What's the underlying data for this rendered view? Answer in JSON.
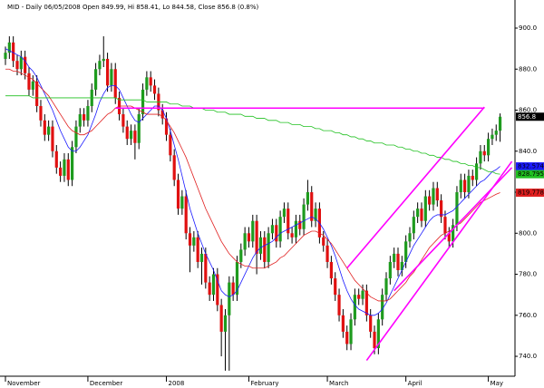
{
  "chart_data": {
    "type": "candlestick",
    "title": "MID - Daily 06/05/2008 Open 849.99, Hi 858.41, Lo 844.58, Close 856.8 (0.8%)",
    "open": [
      885,
      888,
      893,
      884,
      880,
      886,
      878,
      870,
      874,
      862,
      855,
      848,
      852,
      840,
      832,
      828,
      836,
      826,
      842,
      852,
      858,
      855,
      862,
      870,
      880,
      884,
      885,
      872,
      880,
      866,
      858,
      852,
      846,
      850,
      844,
      858,
      870,
      876,
      872,
      868,
      860,
      856,
      848,
      838,
      826,
      812,
      818,
      800,
      794,
      798,
      786,
      790,
      776,
      770,
      780,
      765,
      752,
      760,
      776,
      770,
      786,
      792,
      800,
      796,
      806,
      790,
      798,
      786,
      800,
      804,
      796,
      808,
      812,
      800,
      798,
      806,
      802,
      814,
      820,
      806,
      812,
      798,
      794,
      786,
      778,
      770,
      760,
      752,
      746,
      758,
      770,
      768,
      772,
      760,
      752,
      744,
      758,
      770,
      778,
      786,
      790,
      782,
      786,
      796,
      800,
      808,
      812,
      806,
      818,
      814,
      822,
      816,
      808,
      800,
      796,
      804,
      820,
      826,
      820,
      828,
      826,
      834,
      840,
      838,
      846,
      848,
      849.99
    ],
    "high": [
      891,
      896,
      896,
      887,
      889,
      889,
      881,
      877,
      877,
      865,
      858,
      855,
      855,
      843,
      835,
      839,
      839,
      845,
      855,
      861,
      861,
      865,
      873,
      883,
      887,
      896,
      888,
      883,
      883,
      869,
      861,
      855,
      853,
      853,
      861,
      873,
      879,
      879,
      875,
      871,
      863,
      859,
      851,
      841,
      829,
      821,
      821,
      803,
      801,
      801,
      793,
      793,
      779,
      783,
      783,
      768,
      763,
      779,
      779,
      789,
      795,
      803,
      803,
      809,
      809,
      801,
      801,
      803,
      807,
      807,
      811,
      815,
      815,
      803,
      809,
      809,
      817,
      826,
      823,
      815,
      815,
      801,
      797,
      789,
      781,
      773,
      763,
      755,
      761,
      773,
      773,
      775,
      775,
      763,
      755,
      761,
      773,
      781,
      789,
      793,
      793,
      789,
      799,
      803,
      811,
      815,
      815,
      821,
      821,
      825,
      825,
      819,
      811,
      803,
      807,
      823,
      829,
      829,
      831,
      831,
      837,
      843,
      843,
      849,
      851,
      853,
      858.41
    ],
    "low": [
      882,
      885,
      881,
      877,
      877,
      875,
      867,
      867,
      859,
      852,
      845,
      845,
      837,
      829,
      825,
      825,
      823,
      823,
      839,
      849,
      852,
      852,
      859,
      867,
      877,
      881,
      869,
      869,
      863,
      855,
      849,
      843,
      843,
      836,
      841,
      855,
      867,
      869,
      865,
      857,
      853,
      845,
      835,
      823,
      809,
      809,
      797,
      781,
      791,
      783,
      775,
      773,
      767,
      767,
      762,
      740,
      733,
      733,
      767,
      767,
      783,
      789,
      793,
      793,
      780,
      787,
      783,
      783,
      797,
      793,
      793,
      805,
      797,
      795,
      795,
      799,
      799,
      811,
      803,
      803,
      795,
      791,
      783,
      775,
      767,
      757,
      749,
      743,
      743,
      755,
      765,
      765,
      757,
      749,
      741,
      741,
      755,
      767,
      775,
      783,
      779,
      779,
      783,
      793,
      797,
      805,
      803,
      803,
      811,
      811,
      813,
      805,
      797,
      793,
      793,
      801,
      817,
      817,
      817,
      823,
      823,
      831,
      835,
      835,
      843,
      845,
      844.58
    ],
    "close": [
      888,
      893,
      884,
      880,
      886,
      878,
      870,
      874,
      862,
      855,
      848,
      852,
      840,
      832,
      828,
      836,
      826,
      842,
      852,
      858,
      855,
      862,
      870,
      880,
      884,
      885,
      872,
      880,
      866,
      858,
      852,
      846,
      850,
      844,
      858,
      870,
      876,
      872,
      868,
      860,
      856,
      848,
      838,
      826,
      812,
      818,
      800,
      794,
      798,
      786,
      790,
      776,
      770,
      780,
      765,
      752,
      760,
      776,
      770,
      786,
      792,
      800,
      796,
      806,
      790,
      798,
      786,
      800,
      804,
      796,
      808,
      812,
      800,
      798,
      806,
      802,
      814,
      820,
      806,
      812,
      798,
      794,
      786,
      778,
      770,
      760,
      752,
      746,
      758,
      770,
      768,
      772,
      760,
      752,
      744,
      758,
      770,
      778,
      786,
      790,
      782,
      786,
      796,
      800,
      808,
      812,
      806,
      818,
      814,
      822,
      816,
      808,
      800,
      796,
      804,
      820,
      826,
      820,
      828,
      826,
      834,
      840,
      838,
      846,
      848,
      850,
      856.8
    ],
    "up_color": "#1e9b1e",
    "down_color": "#e01010",
    "wick_color": "#000000",
    "overlays": [
      {
        "color": "#1a1aff",
        "values": [
          890,
          889,
          888,
          887,
          886,
          884,
          881,
          879,
          876,
          872,
          868,
          864,
          860,
          855,
          850,
          846,
          842,
          840,
          840,
          842,
          845,
          848,
          853,
          858,
          864,
          868,
          871,
          872,
          872,
          870,
          866,
          862,
          858,
          855,
          854,
          856,
          858,
          860,
          862,
          862,
          860,
          856,
          850,
          843,
          836,
          828,
          820,
          812,
          806,
          800,
          795,
          790,
          786,
          782,
          777,
          772,
          770,
          769,
          770,
          772,
          776,
          780,
          784,
          788,
          791,
          793,
          794,
          795,
          796,
          798,
          800,
          801,
          802,
          803,
          804,
          805,
          806,
          807,
          808,
          807,
          805,
          802,
          798,
          794,
          789,
          783,
          777,
          772,
          768,
          765,
          763,
          762,
          761,
          760,
          760,
          761,
          763,
          766,
          770,
          774,
          778,
          782,
          786,
          790,
          794,
          797,
          800,
          803,
          806,
          808,
          809,
          809,
          809,
          810,
          811,
          813,
          815,
          817,
          819,
          821,
          823,
          825,
          826,
          828,
          830,
          831,
          832.574
        ]
      },
      {
        "color": "#e02020",
        "values": [
          880,
          880,
          879,
          879,
          878,
          877,
          876,
          875,
          873,
          871,
          869,
          867,
          864,
          861,
          858,
          855,
          852,
          850,
          849,
          848,
          848,
          849,
          850,
          852,
          854,
          856,
          858,
          859,
          861,
          862,
          862,
          862,
          862,
          861,
          860,
          859,
          858,
          858,
          858,
          858,
          857,
          855,
          852,
          849,
          845,
          841,
          837,
          832,
          827,
          822,
          817,
          812,
          808,
          804,
          800,
          796,
          793,
          790,
          788,
          786,
          785,
          784,
          784,
          783,
          783,
          783,
          783,
          784,
          785,
          786,
          788,
          789,
          791,
          793,
          795,
          797,
          799,
          800,
          801,
          801,
          800,
          799,
          797,
          795,
          792,
          789,
          786,
          783,
          780,
          777,
          775,
          773,
          771,
          769,
          768,
          767,
          767,
          767,
          768,
          770,
          772,
          774,
          776,
          779,
          781,
          784,
          787,
          790,
          793,
          795,
          797,
          799,
          800,
          801,
          802,
          804,
          805,
          807,
          809,
          811,
          813,
          815,
          816,
          817,
          818,
          819,
          819.778
        ]
      },
      {
        "color": "#20c020",
        "values": [
          867,
          867,
          867,
          867,
          867,
          867,
          867,
          866,
          866,
          866,
          866,
          866,
          866,
          866,
          866,
          866,
          866,
          866,
          866,
          866,
          866,
          866,
          866,
          866,
          866,
          866,
          866,
          866,
          866,
          865,
          865,
          865,
          865,
          865,
          865,
          865,
          864,
          864,
          864,
          864,
          864,
          864,
          863,
          863,
          863,
          862,
          862,
          862,
          861,
          861,
          861,
          860,
          860,
          860,
          859,
          859,
          859,
          858,
          858,
          858,
          858,
          857,
          857,
          857,
          856,
          856,
          856,
          855,
          855,
          855,
          854,
          854,
          854,
          853,
          853,
          853,
          852,
          852,
          852,
          851,
          851,
          850,
          850,
          850,
          849,
          849,
          848,
          848,
          847,
          847,
          846,
          846,
          845,
          845,
          844,
          844,
          844,
          843,
          843,
          843,
          842,
          842,
          841,
          841,
          840,
          840,
          839,
          839,
          838,
          838,
          837,
          837,
          836,
          836,
          835,
          835,
          834,
          834,
          833,
          833,
          832,
          832,
          831,
          830,
          830,
          829,
          828.795
        ]
      }
    ],
    "trendlines": [
      {
        "color": "#ff00ff",
        "points": [
          [
            28,
            861
          ],
          [
            122,
            861
          ]
        ]
      },
      {
        "color": "#ff00ff",
        "points": [
          [
            87,
            783
          ],
          [
            122,
            861.5
          ]
        ]
      },
      {
        "color": "#ff00ff",
        "points": [
          [
            92,
            738
          ],
          [
            129,
            835
          ]
        ]
      },
      {
        "color": "#ff00ff",
        "points": [
          [
            99,
            772
          ],
          [
            129,
            832
          ]
        ]
      }
    ],
    "ylim": [
      730.3,
      913.7
    ],
    "yticks": [
      {
        "value": 740,
        "label": "740.0"
      },
      {
        "value": 760,
        "label": "760.0"
      },
      {
        "value": 780,
        "label": "780.0"
      },
      {
        "value": 800,
        "label": "800.0"
      },
      {
        "value": 820,
        "label": "820.0"
      },
      {
        "value": 840,
        "label": "840.0"
      },
      {
        "value": 860,
        "label": "860.0"
      },
      {
        "value": 880,
        "label": "880.0"
      },
      {
        "value": 900,
        "label": "900.0"
      }
    ],
    "xticks": [
      {
        "value": 0,
        "label": "November"
      },
      {
        "value": 21,
        "label": "December"
      },
      {
        "value": 41,
        "label": "2008"
      },
      {
        "value": 62,
        "label": "February"
      },
      {
        "value": 82,
        "label": "March"
      },
      {
        "value": 102,
        "label": "April"
      },
      {
        "value": 123,
        "label": "May"
      }
    ]
  }
}
